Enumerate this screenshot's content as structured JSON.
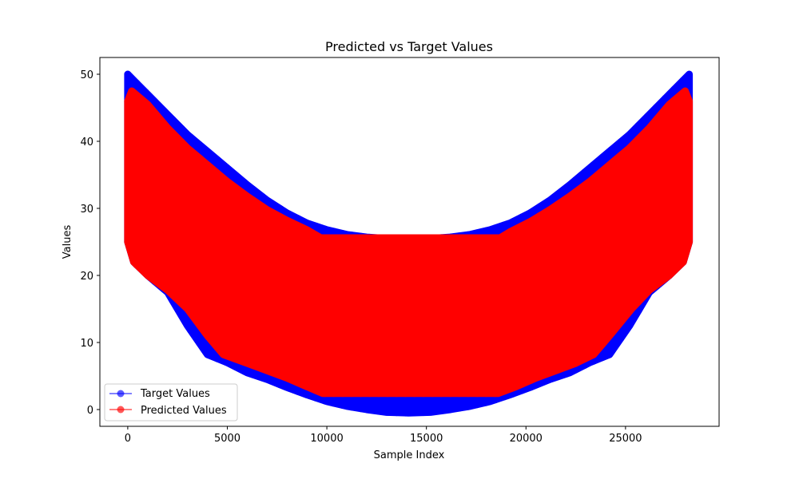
{
  "chart_data": {
    "type": "area",
    "title": "Predicted vs Target Values",
    "xlabel": "Sample Index",
    "ylabel": "Values",
    "xlim": [
      -1400,
      29700
    ],
    "ylim": [
      -2.5,
      52.5
    ],
    "xticks": [
      0,
      5000,
      10000,
      15000,
      20000,
      25000
    ],
    "yticks": [
      0,
      10,
      20,
      30,
      40,
      50
    ],
    "grid": false,
    "legend_position": "lower left",
    "colors": {
      "target": "#0000ff",
      "predicted": "#ff0000"
    },
    "series": [
      {
        "name": "Target Values",
        "color": "#0000ff",
        "marker": "circle",
        "upper": {
          "x": [
            0,
            500,
            1000,
            2000,
            3000,
            4000,
            5000,
            6000,
            7000,
            8000,
            9000,
            10000,
            11000,
            12000,
            13000,
            14100,
            15200,
            16200,
            17200,
            18200,
            19200,
            20200,
            21200,
            22200,
            23200,
            24200,
            25200,
            26200,
            27200,
            28200
          ],
          "y": [
            50,
            48.5,
            47,
            44,
            41,
            38.5,
            36,
            33.5,
            31.2,
            29.3,
            27.8,
            26.8,
            26.1,
            25.7,
            25.5,
            25.4,
            25.5,
            25.7,
            26.1,
            26.8,
            27.8,
            29.3,
            31.2,
            33.5,
            36,
            38.5,
            41,
            44,
            47,
            50
          ]
        },
        "lower": {
          "x": [
            0,
            300,
            1000,
            2000,
            3000,
            4000,
            5000,
            6000,
            7000,
            8000,
            9000,
            10000,
            11000,
            12000,
            13000,
            14100,
            15200,
            16200,
            17200,
            18200,
            19200,
            20200,
            21200,
            22200,
            23200,
            24200,
            25200,
            26200,
            27200,
            27900,
            28200
          ],
          "y": [
            25,
            22,
            20,
            17.5,
            12.5,
            8.2,
            7,
            5.5,
            4.5,
            3.3,
            2.2,
            1.2,
            0.5,
            0,
            -0.4,
            -0.5,
            -0.4,
            0,
            0.5,
            1.2,
            2.2,
            3.3,
            4.5,
            5.5,
            7,
            8.2,
            12.5,
            17.5,
            20,
            22,
            25
          ]
        }
      },
      {
        "name": "Predicted Values",
        "color": "#ff0000",
        "marker": "circle",
        "upper": {
          "x": [
            0,
            200,
            1000,
            2000,
            3000,
            4000,
            5000,
            6000,
            7000,
            8000,
            9000,
            9700,
            18700,
            19200,
            20200,
            21200,
            22200,
            23200,
            24200,
            25200,
            26200,
            27200,
            28000,
            28200
          ],
          "y": [
            46,
            47.5,
            45.5,
            42,
            39,
            36.5,
            34,
            31.8,
            29.8,
            28.2,
            26.8,
            25.6,
            25.6,
            26.5,
            28,
            29.8,
            31.8,
            34,
            36.5,
            39,
            42,
            45.5,
            47.5,
            46
          ]
        },
        "lower": {
          "x": [
            0,
            300,
            1000,
            2000,
            3000,
            4000,
            4800,
            6000,
            7000,
            8000,
            9000,
            9800,
            18600,
            19500,
            20500,
            21500,
            22500,
            23400,
            24200,
            25300,
            26200,
            27200,
            27900,
            28200
          ],
          "y": [
            25,
            22,
            20,
            17.8,
            15,
            11,
            8.2,
            6.9,
            5.8,
            4.7,
            3.4,
            2.4,
            2.4,
            3.4,
            4.7,
            5.8,
            6.9,
            8.2,
            11,
            15,
            17.8,
            20,
            22,
            25
          ]
        }
      }
    ]
  }
}
